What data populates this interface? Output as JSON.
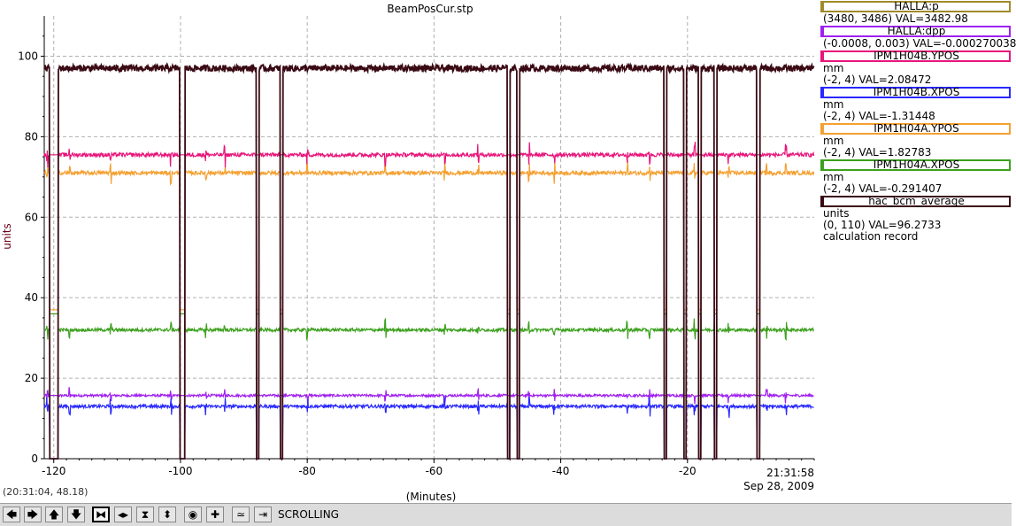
{
  "chart_data": {
    "type": "line",
    "title": "BeamPosCur.stp",
    "ylabel": "units",
    "xlabel": "(Minutes)",
    "xlim": [
      -121.5,
      0
    ],
    "ylim": [
      0,
      110
    ],
    "xticks": [
      -120,
      -100,
      -80,
      -60,
      -40,
      -20
    ],
    "xtick_labels": [
      "-120",
      "-100",
      "-80",
      "-60",
      "-40",
      "-20"
    ],
    "yticks": [
      0,
      20,
      40,
      60,
      80,
      100
    ],
    "ytick_labels": [
      "0",
      "20",
      "40",
      "60",
      "80",
      "100"
    ],
    "end_time": "21:31:58",
    "end_date": "Sep 28, 2009",
    "grid": true,
    "beam_trips": [
      {
        "start": -120.7,
        "end": -119.3
      },
      {
        "start": -100.1,
        "end": -99.3
      },
      {
        "start": -88.0,
        "end": -87.6
      },
      {
        "start": -84.3,
        "end": -83.9
      },
      {
        "start": -48.4,
        "end": -48.0
      },
      {
        "start": -46.9,
        "end": -46.5
      },
      {
        "start": -23.7,
        "end": -23.3
      },
      {
        "start": -20.6,
        "end": -20.2
      },
      {
        "start": -18.3,
        "end": -17.9
      },
      {
        "start": -15.8,
        "end": -15.4
      },
      {
        "start": -9.1,
        "end": -8.6
      }
    ],
    "series": [
      {
        "name": "HALLA:p",
        "color": "#a08a2a",
        "level": 0,
        "trip_level": 0,
        "noise": 0,
        "range": "(3480, 3486)",
        "value": "VAL=3482.98",
        "unit": ""
      },
      {
        "name": "HALLA:dpp",
        "color": "#a020f0",
        "level": 15.7,
        "trip_level": 15.7,
        "noise": 0.3,
        "range": "(-0.0008, 0.003)",
        "value": "VAL=-0.000270038",
        "unit": ""
      },
      {
        "name": "IPM1H04B.YPOS",
        "color": "#e8157a",
        "level": 75.5,
        "trip_level": 75.5,
        "noise": 0.5,
        "range": "(-2, 4)",
        "value": "VAL=2.08472",
        "unit": "mm"
      },
      {
        "name": "IPM1H04B.XPOS",
        "color": "#2828ff",
        "level": 13.0,
        "trip_level": 0,
        "noise": 0.4,
        "range": "(-2, 4)",
        "value": "VAL=-1.31448",
        "unit": "mm"
      },
      {
        "name": "IPM1H04A.YPOS",
        "color": "#f5a030",
        "level": 71.0,
        "trip_level": 37,
        "noise": 0.5,
        "range": "(-2, 4)",
        "value": "VAL=1.82783",
        "unit": "mm"
      },
      {
        "name": "IPM1H04A.XPOS",
        "color": "#3ca01e",
        "level": 32.0,
        "trip_level": 36,
        "noise": 0.4,
        "range": "(-2, 4)",
        "value": "VAL=-0.291407",
        "unit": "mm"
      },
      {
        "name": "hac_bcm_average",
        "color": "#3a0a14",
        "level": 97.0,
        "trip_level": 0,
        "noise": 0.8,
        "range": "(0, 110)",
        "value": "VAL=96.2733",
        "unit": "units",
        "note": "calculation record"
      }
    ]
  },
  "status": {
    "cursor_readout": "(20:31:04, 48.18)"
  },
  "toolbar": {
    "scrolling_label": "SCROLLING",
    "buttons": [
      {
        "name": "scroll-left-button",
        "glyph": "🡄"
      },
      {
        "name": "scroll-right-button",
        "glyph": "🡆"
      },
      {
        "name": "scroll-up-button",
        "glyph": "🡅"
      },
      {
        "name": "scroll-down-button",
        "glyph": "🡇"
      },
      {
        "name": "zoom-in-x-button",
        "glyph": "⧓"
      },
      {
        "name": "zoom-out-x-button",
        "glyph": "◂▸"
      },
      {
        "name": "zoom-in-y-button",
        "glyph": "⧗"
      },
      {
        "name": "zoom-out-y-button",
        "glyph": "⬍"
      },
      {
        "name": "reset-button",
        "glyph": "◉"
      },
      {
        "name": "add-button",
        "glyph": "✚"
      },
      {
        "name": "auto-scale-button",
        "glyph": "≃"
      },
      {
        "name": "scroll-end-button",
        "glyph": "⇥"
      }
    ]
  }
}
